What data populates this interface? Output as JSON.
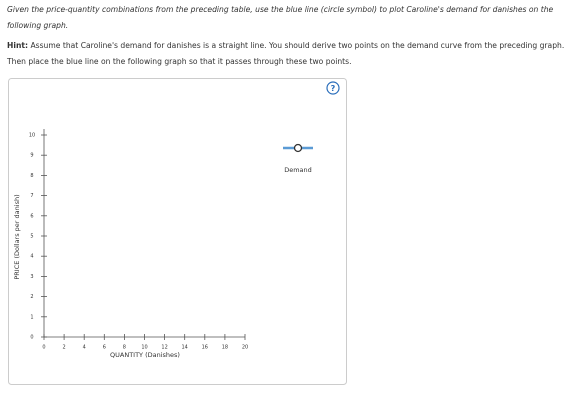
{
  "instructions": "Given the price-quantity combinations from the preceding table, use the blue line (circle symbol) to plot Caroline's demand for danishes on the following graph.",
  "hint": {
    "label": "Hint:",
    "text": "Assume that Caroline's demand for danishes is a straight line. You should derive two points on the demand curve from the preceding graph. Then place the blue line on the following graph so that it passes through these two points."
  },
  "help_icon": "?",
  "graph": {
    "ylabel": "PRICE (Dollars per danish)",
    "xlabel": "QUANTITY (Danishes)",
    "xlim": [
      0,
      20
    ],
    "xticks": [
      0,
      2,
      4,
      6,
      8,
      10,
      12,
      14,
      16,
      18,
      20
    ],
    "ylim": [
      0,
      10
    ],
    "yticks": [
      0,
      1,
      2,
      3,
      4,
      5,
      6,
      7,
      8,
      9,
      10
    ],
    "legend": "Demand",
    "color": "#5b9bd5"
  }
}
